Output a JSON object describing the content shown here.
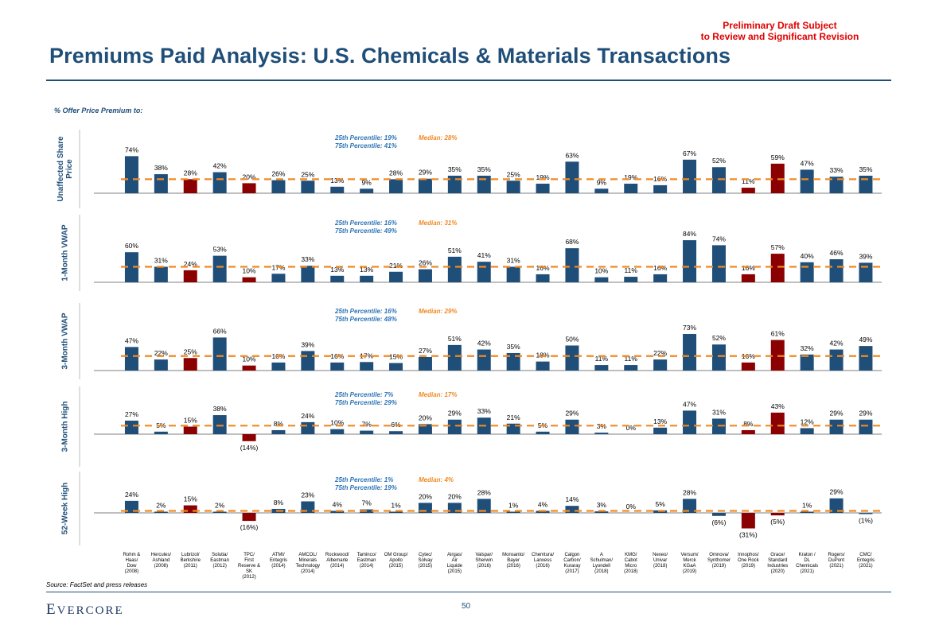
{
  "header": {
    "draft_notice_line1": "Preliminary Draft Subject",
    "draft_notice_line2": "to Review and Significant Revision",
    "title": "Premiums Paid Analysis: U.S. Chemicals & Materials Transactions",
    "subtitle": "% Offer Price Premium to:"
  },
  "footer": {
    "source": "Source: FactSet and press releases",
    "logo": "Evercore",
    "page_number": "50"
  },
  "colors": {
    "navy": "#1f4e79",
    "highlight": "#8b0000",
    "median_line": "#f08a24",
    "percentile_text": "#2e75b6"
  },
  "chart_data": {
    "type": "bar",
    "categories": [
      [
        "Rohm &",
        "Haas/",
        "Dow",
        "(2008)"
      ],
      [
        "Hercules/",
        "Ashland",
        "(2008)"
      ],
      [
        "Lubrizol/",
        "Berkshire",
        "(2011)"
      ],
      [
        "Solutia/",
        "Eastman",
        "(2012)"
      ],
      [
        "TPC/",
        "First",
        "Reserve &",
        "SK",
        "(2012)"
      ],
      [
        "ATMI/",
        "Entegris",
        "(2014)"
      ],
      [
        "AMCOL/",
        "Minerals",
        "Technology",
        "(2014)"
      ],
      [
        "Rockwood/",
        "Albemarle",
        "(2014)"
      ],
      [
        "Taminco/",
        "Eastman",
        "(2014)"
      ],
      [
        "OM Group/",
        "Apollo",
        "(2015)"
      ],
      [
        "Cytec/",
        "Solvay",
        "(2015)"
      ],
      [
        "Airgas/",
        "Air",
        "Liquide",
        "(2015)"
      ],
      [
        "Valspar/",
        "Sherwin",
        "(2016)"
      ],
      [
        "Monsanto/",
        "Bayer",
        "(2016)"
      ],
      [
        "Chemtura/",
        "Lanxess",
        "(2016)"
      ],
      [
        "Calgon",
        "Carbon/",
        "Kuraray",
        "(2017)"
      ],
      [
        "A",
        "Schulman/",
        "Lyondell",
        "(2018)"
      ],
      [
        "KMG/",
        "Cabot",
        "Micro",
        "(2018)"
      ],
      [
        "Nexeo/",
        "Univar",
        "(2018)"
      ],
      [
        "Versum/",
        "Merck",
        "KGaA",
        "(2019)"
      ],
      [
        "Omnova/",
        "Synthomer",
        "(2019)"
      ],
      [
        "Innophos/",
        "One Rock",
        "(2019)"
      ],
      [
        "Grace/",
        "Standard",
        "Industries",
        "(2020)"
      ],
      [
        "Kraton /",
        "DL",
        "Chemicals",
        "(2021)"
      ],
      [
        "Rogers/",
        "DuPont",
        "(2021)"
      ],
      [
        "CMC/",
        "Entegris",
        "(2021)"
      ]
    ],
    "highlighted_indices": [
      2,
      4,
      21,
      22
    ],
    "series": [
      {
        "name": "Unaffected Share Price",
        "label_lines": [
          "Unaffected Share",
          "Price"
        ],
        "values": [
          74,
          38,
          28,
          42,
          20,
          26,
          25,
          13,
          9,
          28,
          29,
          35,
          35,
          25,
          19,
          63,
          9,
          19,
          16,
          67,
          52,
          11,
          59,
          47,
          33,
          35
        ],
        "labels": [
          "74%",
          "38%",
          "28%",
          "42%",
          "20%",
          "26%",
          "25%",
          "13%",
          "9%",
          "28%",
          "29%",
          "35%",
          "35%",
          "25%",
          "19%",
          "63%",
          "9%",
          "19%",
          "16%",
          "67%",
          "52%",
          "11%",
          "59%",
          "47%",
          "33%",
          "35%"
        ],
        "median": 28,
        "p25_text": "25th Percentile: 19%",
        "p75_text": "75th Percentile: 41%",
        "median_text": "Median: 28%"
      },
      {
        "name": "1-Month VWAP",
        "label_lines": [
          "1-Month VWAP"
        ],
        "values": [
          60,
          31,
          24,
          53,
          10,
          17,
          33,
          13,
          13,
          21,
          26,
          51,
          41,
          31,
          16,
          68,
          10,
          11,
          16,
          84,
          74,
          16,
          57,
          40,
          46,
          39
        ],
        "labels": [
          "60%",
          "31%",
          "24%",
          "53%",
          "10%",
          "17%",
          "33%",
          "13%",
          "13%",
          "21%",
          "26%",
          "51%",
          "41%",
          "31%",
          "16%",
          "68%",
          "10%",
          "11%",
          "16%",
          "84%",
          "74%",
          "16%",
          "57%",
          "40%",
          "46%",
          "39%"
        ],
        "median": 31,
        "p25_text": "25th Percentile: 16%",
        "p75_text": "75th Percentile: 49%",
        "median_text": "Median: 31%"
      },
      {
        "name": "3-Month VWAP",
        "label_lines": [
          "3-Month VWAP"
        ],
        "values": [
          47,
          22,
          25,
          66,
          10,
          16,
          39,
          16,
          17,
          15,
          27,
          51,
          42,
          35,
          18,
          50,
          11,
          11,
          22,
          73,
          52,
          16,
          61,
          32,
          42,
          49
        ],
        "labels": [
          "47%",
          "22%",
          "25%",
          "66%",
          "10%",
          "16%",
          "39%",
          "16%",
          "17%",
          "15%",
          "27%",
          "51%",
          "42%",
          "35%",
          "18%",
          "50%",
          "11%",
          "11%",
          "22%",
          "73%",
          "52%",
          "16%",
          "61%",
          "32%",
          "42%",
          "49%"
        ],
        "median": 29,
        "p25_text": "25th Percentile: 16%",
        "p75_text": "75th Percentile: 48%",
        "median_text": "Median: 29%"
      },
      {
        "name": "3-Month High",
        "label_lines": [
          "3-Month High"
        ],
        "values": [
          27,
          5,
          15,
          38,
          -14,
          8,
          24,
          10,
          7,
          6,
          20,
          29,
          33,
          21,
          5,
          29,
          3,
          0,
          13,
          47,
          31,
          8,
          43,
          12,
          29,
          29
        ],
        "labels": [
          "27%",
          "5%",
          "15%",
          "38%",
          "(14%)",
          "8%",
          "24%",
          "10%",
          "7%",
          "6%",
          "20%",
          "29%",
          "33%",
          "21%",
          "5%",
          "29%",
          "3%",
          "0%",
          "13%",
          "47%",
          "31%",
          "8%",
          "43%",
          "12%",
          "29%",
          "29%"
        ],
        "median": 17,
        "p25_text": "25th Percentile: 7%",
        "p75_text": "75th Percentile: 29%",
        "median_text": "Median: 17%"
      },
      {
        "name": "52-Week High",
        "label_lines": [
          "52-Week High"
        ],
        "values": [
          24,
          2,
          15,
          2,
          -16,
          8,
          23,
          4,
          7,
          1,
          20,
          20,
          28,
          1,
          4,
          14,
          3,
          0,
          5,
          28,
          -6,
          -31,
          -5,
          1,
          29,
          -1
        ],
        "labels": [
          "24%",
          "2%",
          "15%",
          "2%",
          "(16%)",
          "8%",
          "23%",
          "4%",
          "7%",
          "1%",
          "20%",
          "20%",
          "28%",
          "1%",
          "4%",
          "14%",
          "3%",
          "0%",
          "5%",
          "28%",
          "(6%)",
          "(31%)",
          "(5%)",
          "1%",
          "29%",
          "(1%)"
        ],
        "median": 4,
        "p25_text": "25th Percentile: 1%",
        "p75_text": "75th Percentile: 19%",
        "median_text": "Median: 4%"
      }
    ]
  }
}
